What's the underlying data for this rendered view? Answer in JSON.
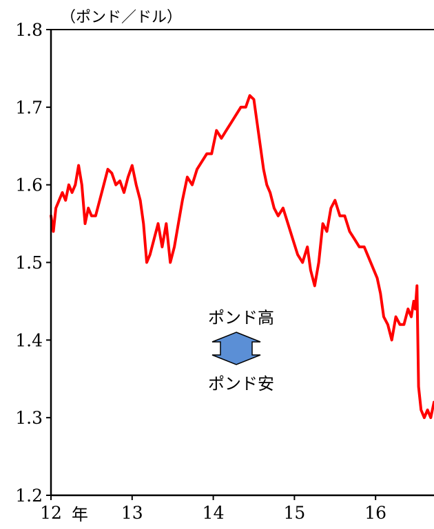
{
  "chart_data": {
    "type": "line",
    "y_unit": "（ポンド／ドル）",
    "ylim": [
      1.2,
      1.8
    ],
    "yticks": [
      1.2,
      1.3,
      1.4,
      1.5,
      1.6,
      1.7,
      1.8
    ],
    "ytick_labels": [
      "1.2",
      "1.3",
      "1.4",
      "1.5",
      "1.6",
      "1.7",
      "1.8"
    ],
    "xlim": [
      2012,
      2016.72
    ],
    "xticks": [
      2012,
      2013,
      2014,
      2015,
      2016
    ],
    "xtick_labels": [
      "12",
      "13",
      "14",
      "15",
      "16"
    ],
    "x_year_suffix": "年",
    "annotations": {
      "up": "ポンド高",
      "down": "ポンド安"
    },
    "colors": {
      "series": "#ff0000",
      "arrow": "#5b8fd6",
      "axis": "#000000"
    },
    "series": [
      {
        "x": [
          2012.0,
          2012.03,
          2012.06,
          2012.1,
          2012.14,
          2012.18,
          2012.22,
          2012.26,
          2012.3,
          2012.34,
          2012.38,
          2012.42,
          2012.46,
          2012.5,
          2012.55,
          2012.6,
          2012.65,
          2012.7,
          2012.75,
          2012.8,
          2012.85,
          2012.9,
          2012.95,
          2013.0,
          2013.05,
          2013.1,
          2013.14,
          2013.18,
          2013.22,
          2013.27,
          2013.32,
          2013.37,
          2013.42,
          2013.47,
          2013.52,
          2013.57,
          2013.62,
          2013.68,
          2013.74,
          2013.8,
          2013.86,
          2013.92,
          2013.98,
          2014.04,
          2014.1,
          2014.16,
          2014.22,
          2014.28,
          2014.34,
          2014.4,
          2014.45,
          2014.5,
          2014.54,
          2014.58,
          2014.62,
          2014.66,
          2014.7,
          2014.75,
          2014.8,
          2014.86,
          2014.92,
          2014.98,
          2015.04,
          2015.1,
          2015.16,
          2015.2,
          2015.25,
          2015.3,
          2015.35,
          2015.4,
          2015.45,
          2015.5,
          2015.56,
          2015.62,
          2015.68,
          2015.74,
          2015.8,
          2015.86,
          2015.9,
          2015.94,
          2015.98,
          2016.02,
          2016.06,
          2016.1,
          2016.15,
          2016.2,
          2016.25,
          2016.3,
          2016.35,
          2016.4,
          2016.44,
          2016.47,
          2016.49,
          2016.51,
          2016.53,
          2016.56,
          2016.6,
          2016.64,
          2016.68,
          2016.72
        ],
        "y": [
          1.56,
          1.54,
          1.57,
          1.58,
          1.59,
          1.58,
          1.6,
          1.59,
          1.6,
          1.625,
          1.6,
          1.55,
          1.57,
          1.56,
          1.56,
          1.58,
          1.6,
          1.62,
          1.615,
          1.6,
          1.605,
          1.59,
          1.61,
          1.625,
          1.6,
          1.58,
          1.55,
          1.5,
          1.51,
          1.53,
          1.55,
          1.52,
          1.55,
          1.5,
          1.52,
          1.55,
          1.58,
          1.61,
          1.6,
          1.62,
          1.63,
          1.64,
          1.64,
          1.67,
          1.66,
          1.67,
          1.68,
          1.69,
          1.7,
          1.7,
          1.715,
          1.71,
          1.68,
          1.65,
          1.62,
          1.6,
          1.59,
          1.57,
          1.56,
          1.57,
          1.55,
          1.53,
          1.51,
          1.5,
          1.52,
          1.49,
          1.47,
          1.5,
          1.55,
          1.54,
          1.57,
          1.58,
          1.56,
          1.56,
          1.54,
          1.53,
          1.52,
          1.52,
          1.51,
          1.5,
          1.49,
          1.48,
          1.46,
          1.43,
          1.42,
          1.4,
          1.43,
          1.42,
          1.42,
          1.44,
          1.43,
          1.45,
          1.44,
          1.47,
          1.34,
          1.31,
          1.3,
          1.31,
          1.3,
          1.32
        ]
      }
    ]
  }
}
